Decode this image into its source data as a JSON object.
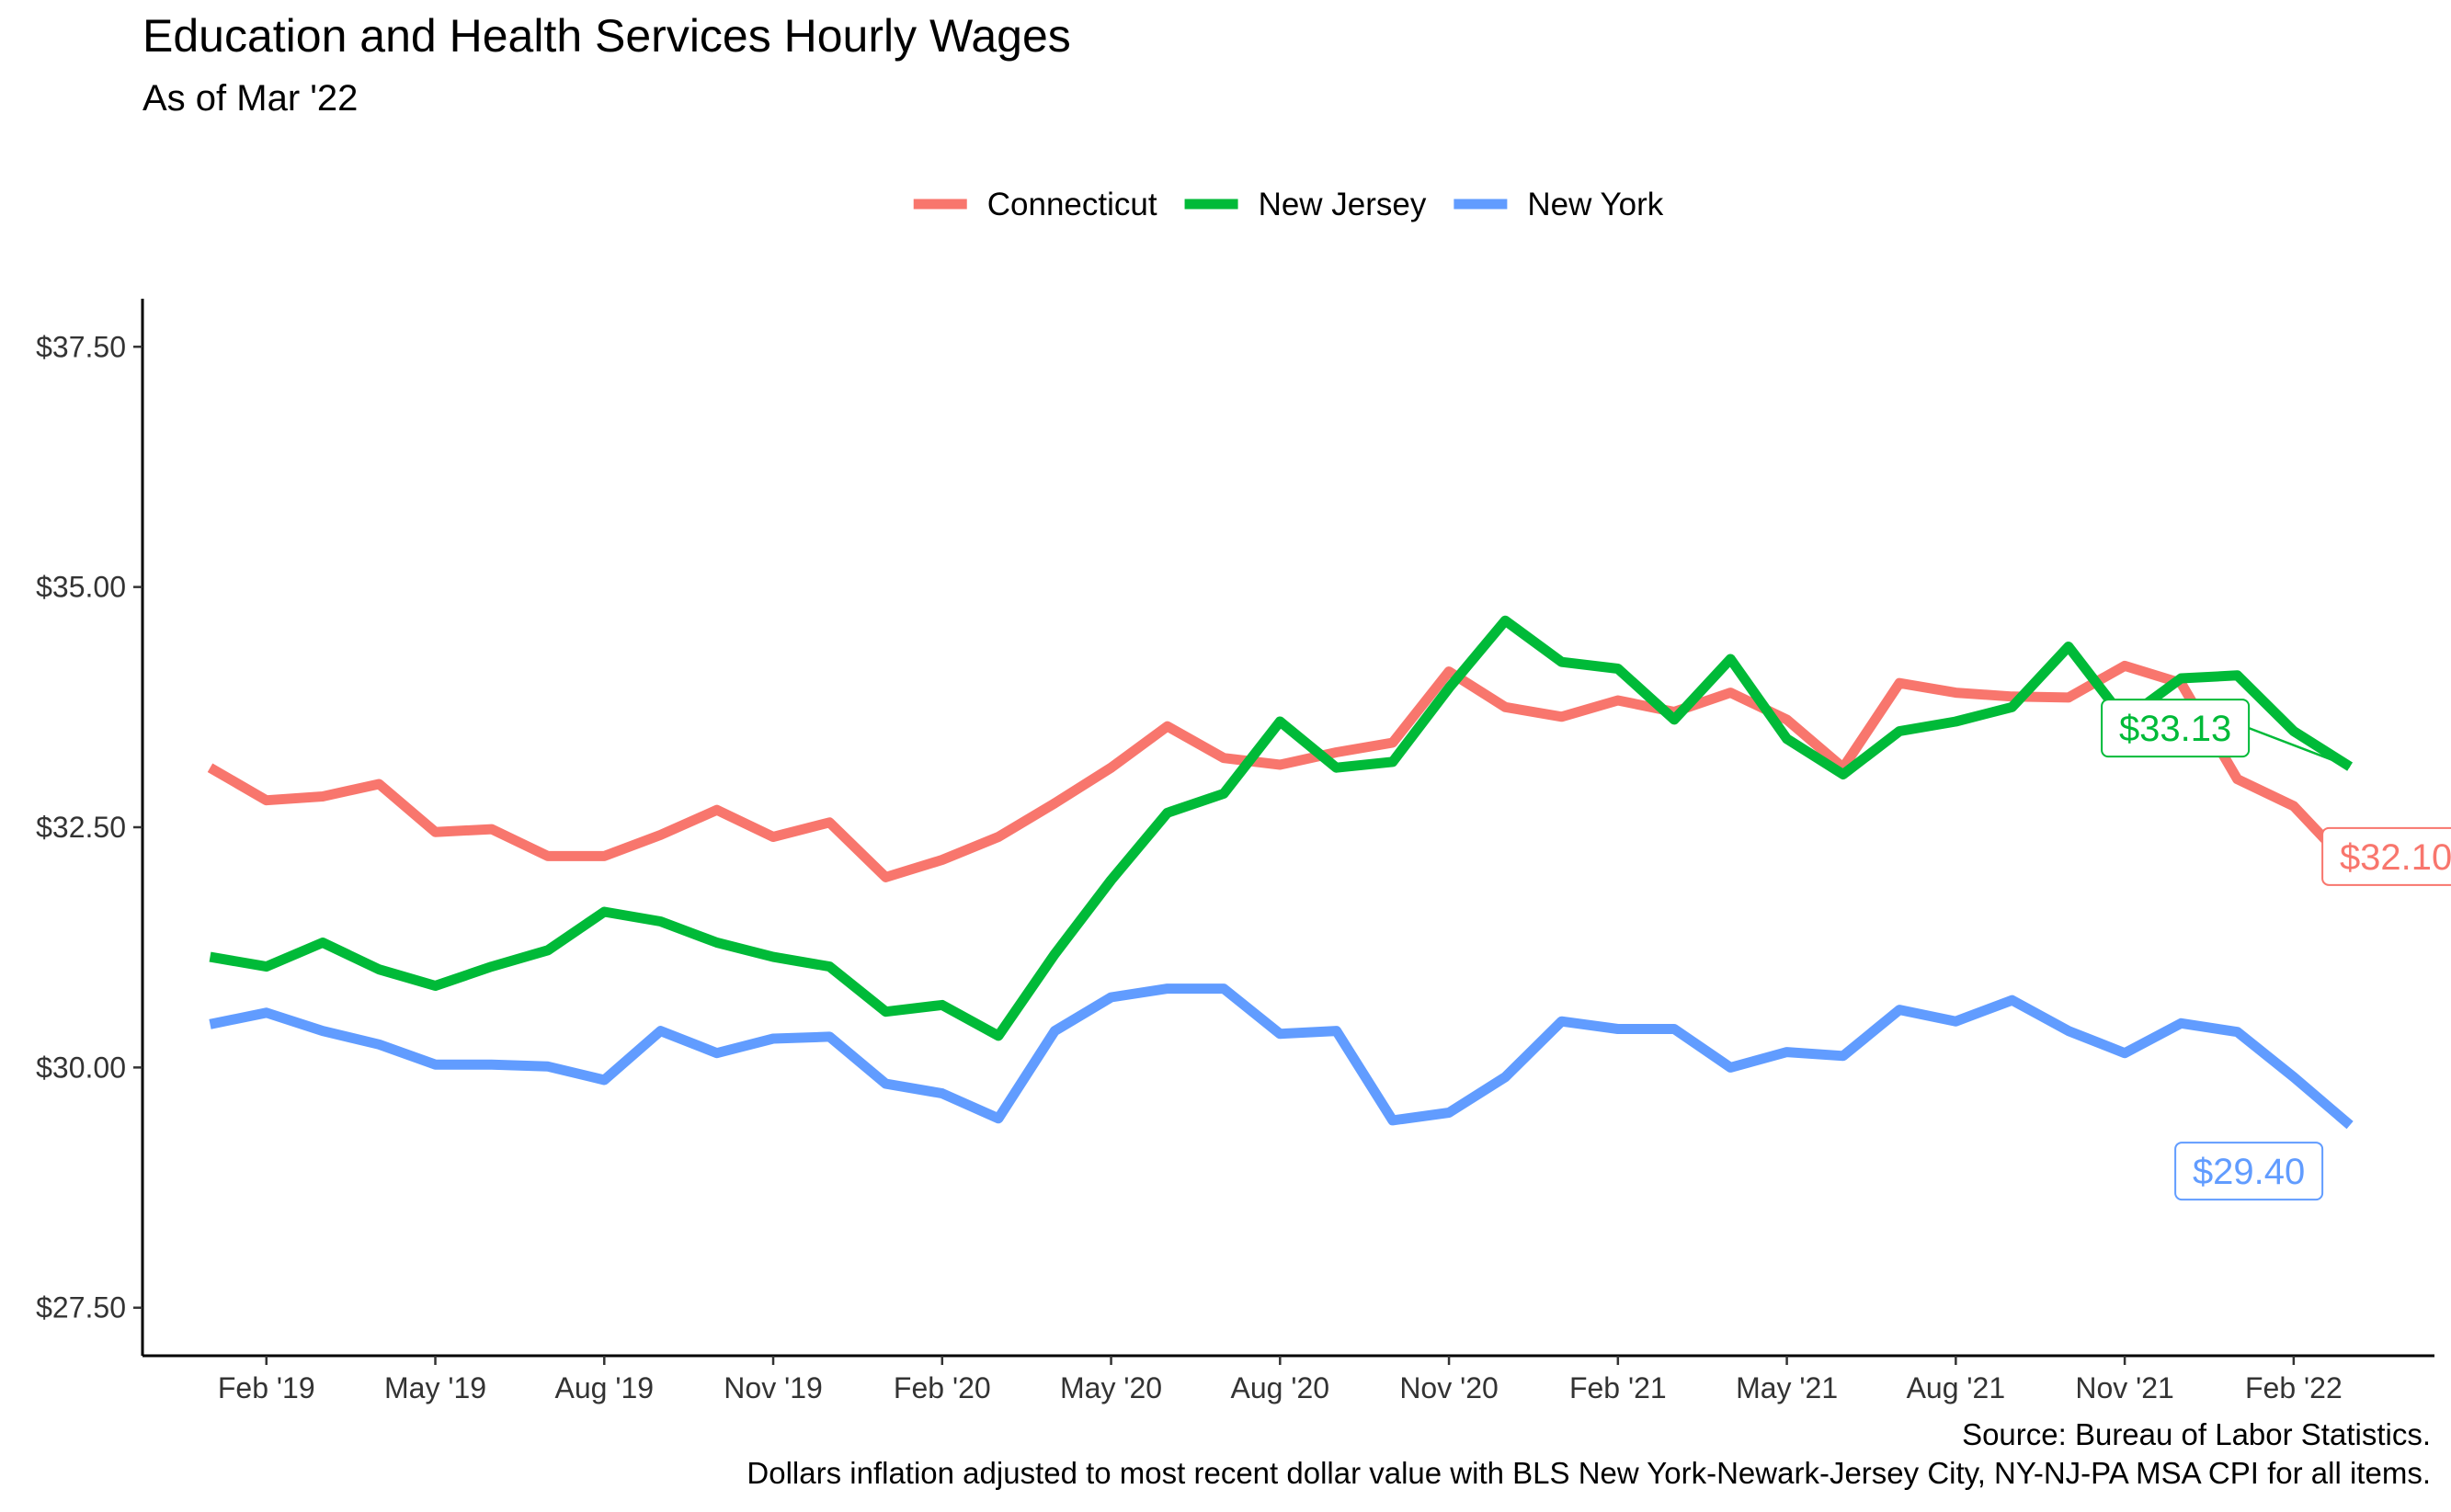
{
  "header": {
    "title": "Education and Health Services Hourly Wages",
    "subtitle": "As of Mar '22"
  },
  "footer": {
    "source": "Source: Bureau of Labor Statistics.",
    "note": "Dollars inflation adjusted to most recent dollar value with BLS New York-Newark-Jersey City, NY-NJ-PA MSA CPI for all items."
  },
  "chart_data": {
    "type": "line",
    "title": "Education and Health Services Hourly Wages",
    "subtitle": "As of Mar '22",
    "xlabel": "",
    "ylabel": "",
    "x_start": "Jan '19",
    "x_labels": [
      "Feb '19",
      "May '19",
      "Aug '19",
      "Nov '19",
      "Feb '20",
      "May '20",
      "Aug '20",
      "Nov '20",
      "Feb '21",
      "May '21",
      "Aug '21",
      "Nov '21",
      "Feb '22"
    ],
    "x_label_month_index": [
      1,
      4,
      7,
      10,
      13,
      16,
      19,
      22,
      25,
      28,
      31,
      34,
      37
    ],
    "xlim_months": [
      -1.2,
      39.5
    ],
    "y_ticks": [
      27.5,
      30,
      32.5,
      35,
      37.5
    ],
    "y_tick_labels": [
      "$27.50",
      "$30.00",
      "$32.50",
      "$35.00",
      "$37.50"
    ],
    "ylim": [
      27.0,
      38.0
    ],
    "grid": false,
    "legend_position": "top",
    "series": [
      {
        "name": "Connecticut",
        "color": "#F8766D",
        "end_label": "$32.10",
        "values": [
          33.12,
          32.78,
          32.82,
          32.95,
          32.45,
          32.48,
          32.2,
          32.2,
          32.42,
          32.68,
          32.4,
          32.55,
          31.98,
          32.16,
          32.4,
          32.75,
          33.12,
          33.55,
          33.22,
          33.15,
          33.28,
          33.38,
          34.12,
          33.75,
          33.65,
          33.82,
          33.7,
          33.9,
          33.62,
          33.12,
          34.0,
          33.9,
          33.86,
          33.85,
          34.18,
          34.0,
          33.0,
          32.72,
          32.1
        ]
      },
      {
        "name": "New Jersey",
        "color": "#00BA38",
        "end_label": "$33.13",
        "values": [
          31.15,
          31.05,
          31.3,
          31.02,
          30.85,
          31.05,
          31.22,
          31.62,
          31.52,
          31.3,
          31.15,
          31.05,
          30.58,
          30.65,
          30.33,
          31.18,
          31.95,
          32.65,
          32.85,
          33.6,
          33.12,
          33.18,
          33.95,
          34.65,
          34.22,
          34.15,
          33.62,
          34.25,
          33.42,
          33.05,
          33.5,
          33.6,
          33.75,
          34.38,
          33.62,
          34.05,
          34.08,
          33.5,
          33.13
        ]
      },
      {
        "name": "New York",
        "color": "#619CFF",
        "end_label": "$29.40",
        "values": [
          30.45,
          30.57,
          30.38,
          30.24,
          30.03,
          30.03,
          30.01,
          29.87,
          30.38,
          30.15,
          30.3,
          30.32,
          29.83,
          29.73,
          29.47,
          30.38,
          30.73,
          30.82,
          30.82,
          30.35,
          30.38,
          29.45,
          29.53,
          29.9,
          30.48,
          30.4,
          30.4,
          30.0,
          30.16,
          30.12,
          30.6,
          30.48,
          30.7,
          30.38,
          30.15,
          30.46,
          30.37,
          29.9,
          29.4
        ]
      }
    ]
  }
}
